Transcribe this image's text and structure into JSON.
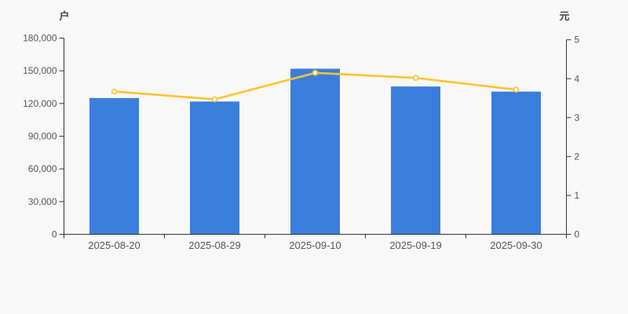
{
  "chart_data": {
    "type": "bar+line",
    "categories": [
      "2025-08-20",
      "2025-08-29",
      "2025-09-10",
      "2025-09-19",
      "2025-09-30"
    ],
    "series": [
      {
        "type": "bar",
        "y_axis": "left",
        "color": "#3a7edb",
        "values": [
          125000,
          121800,
          151900,
          135600,
          130900
        ]
      },
      {
        "type": "line",
        "y_axis": "right",
        "color": "#fdc32c",
        "marker": "hollow-circle",
        "values": [
          3.67,
          3.47,
          4.15,
          4.02,
          3.72
        ]
      }
    ],
    "y_axis_left": {
      "name": "户",
      "min": 0,
      "max": 180000,
      "interval": 30000,
      "tick_labels": [
        "0",
        "30,000",
        "60,000",
        "90,000",
        "120,000",
        "150,000",
        "180,000"
      ]
    },
    "y_axis_right": {
      "name": "元",
      "min": 0,
      "max": 5,
      "interval": 1,
      "tick_labels": [
        "0",
        "1",
        "2",
        "3",
        "4",
        "5"
      ]
    },
    "grid": false,
    "legend": false,
    "title": ""
  },
  "colors": {
    "background": "#f8f8f8",
    "bar": "#3a7edb",
    "line": "#fdc32c",
    "marker_fill": "#ffffff",
    "axis_line": "#333333",
    "tick_text": "#555555",
    "axis_name_text": "#444444"
  }
}
